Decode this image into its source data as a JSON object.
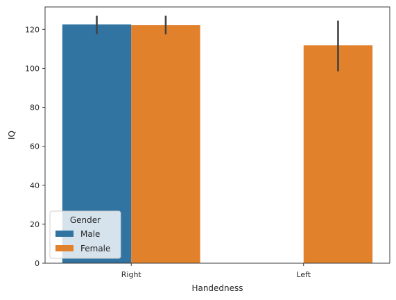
{
  "chart_data": {
    "type": "bar",
    "categories": [
      "Right",
      "Left"
    ],
    "series": [
      {
        "name": "Male",
        "color": "#3274a1",
        "values": [
          122.5,
          null
        ],
        "ci": [
          [
            117.5,
            127.0
          ],
          null
        ]
      },
      {
        "name": "Female",
        "color": "#e1812c",
        "values": [
          122.2,
          111.8
        ],
        "ci": [
          [
            117.5,
            127.0
          ],
          [
            98.5,
            124.5
          ]
        ]
      }
    ],
    "xlabel": "Handedness",
    "ylabel": "IQ",
    "ylim": [
      0,
      131.5
    ],
    "yticks": [
      0,
      20,
      40,
      60,
      80,
      100,
      120
    ],
    "grid": false,
    "legend": {
      "title": "Gender",
      "placement": "lower-left",
      "entries": [
        "Male",
        "Female"
      ]
    }
  }
}
